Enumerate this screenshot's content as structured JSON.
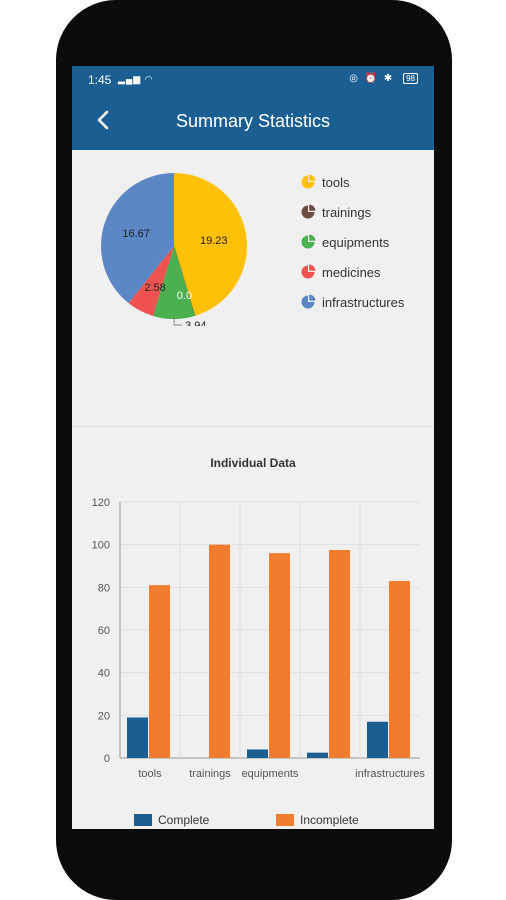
{
  "status_bar": {
    "time": "1:45",
    "battery": "98"
  },
  "app_bar": {
    "title": "Summary Statistics",
    "back_icon": "arrow-left-icon"
  },
  "colors": {
    "primary": "#1b5e92",
    "complete": "#1b5e92",
    "incomplete": "#f07c30",
    "tools": "#ffc107",
    "trainings": "#6d4c41",
    "equipments": "#4caf50",
    "medicines": "#ef5350",
    "infrastructures": "#5b87c7"
  },
  "pie_legend": [
    {
      "label": "tools",
      "icon": "pie-chart-icon"
    },
    {
      "label": "trainings",
      "icon": "pie-chart-icon"
    },
    {
      "label": "equipments",
      "icon": "pie-chart-icon"
    },
    {
      "label": "medicines",
      "icon": "pie-chart-icon"
    },
    {
      "label": "infrastructures",
      "icon": "pie-chart-icon"
    }
  ],
  "chart_data": [
    {
      "type": "pie",
      "labels": [
        "tools",
        "trainings",
        "equipments",
        "medicines",
        "infrastructures"
      ],
      "values": [
        19.23,
        0.0,
        3.94,
        2.58,
        16.67
      ],
      "value_labels": [
        "19.23",
        "0.0",
        "3.94",
        "2.58",
        "16.67"
      ],
      "legend": "right"
    },
    {
      "type": "bar",
      "title": "Individual Data",
      "categories": [
        "tools",
        "trainings",
        "equipments",
        "",
        "infrastructures"
      ],
      "series": [
        {
          "name": "Complete",
          "values": [
            19,
            0,
            4,
            2.5,
            17
          ]
        },
        {
          "name": "Incomplete",
          "values": [
            81,
            100,
            96,
            97.5,
            83
          ]
        }
      ],
      "ylim": [
        0,
        120
      ],
      "yticks": [
        "0",
        "20",
        "40",
        "60",
        "80",
        "100",
        "120"
      ],
      "grid": true,
      "legend": "bottom"
    }
  ]
}
